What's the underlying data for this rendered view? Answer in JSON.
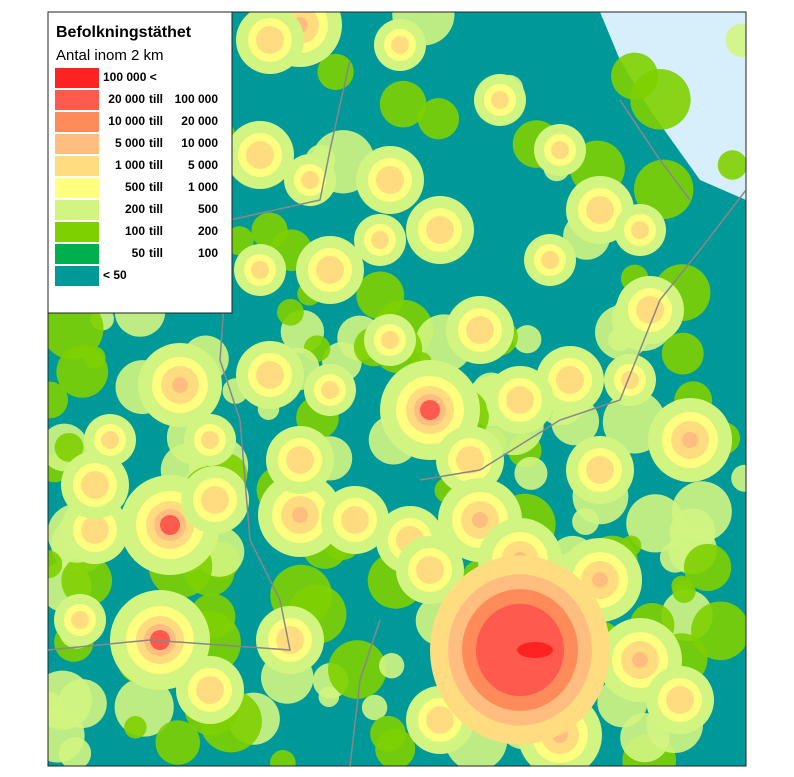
{
  "legend": {
    "title": "Befolkningstäthet",
    "subtitle": "Antal inom 2 km",
    "items": [
      {
        "color": "#ff2222",
        "low": "100 000 <"
      },
      {
        "color": "#ff5a4e",
        "low": "20 000",
        "till": "till",
        "high": "100 000"
      },
      {
        "color": "#ff8a5a",
        "low": "10 000",
        "till": "till",
        "high": "20 000"
      },
      {
        "color": "#ffbe80",
        "low": "5 000",
        "till": "till",
        "high": "10 000"
      },
      {
        "color": "#ffdc80",
        "low": "1 000",
        "till": "till",
        "high": "5 000"
      },
      {
        "color": "#ffff80",
        "low": "500",
        "till": "till",
        "high": "1 000"
      },
      {
        "color": "#d2f582",
        "low": "200",
        "till": "till",
        "high": "500"
      },
      {
        "color": "#7ed000",
        "low": "100",
        "till": "till",
        "high": "200"
      },
      {
        "color": "#00b050",
        "low": "50",
        "till": "till",
        "high": "100"
      },
      {
        "color": "#00999a",
        "low": "< 50"
      }
    ]
  }
}
